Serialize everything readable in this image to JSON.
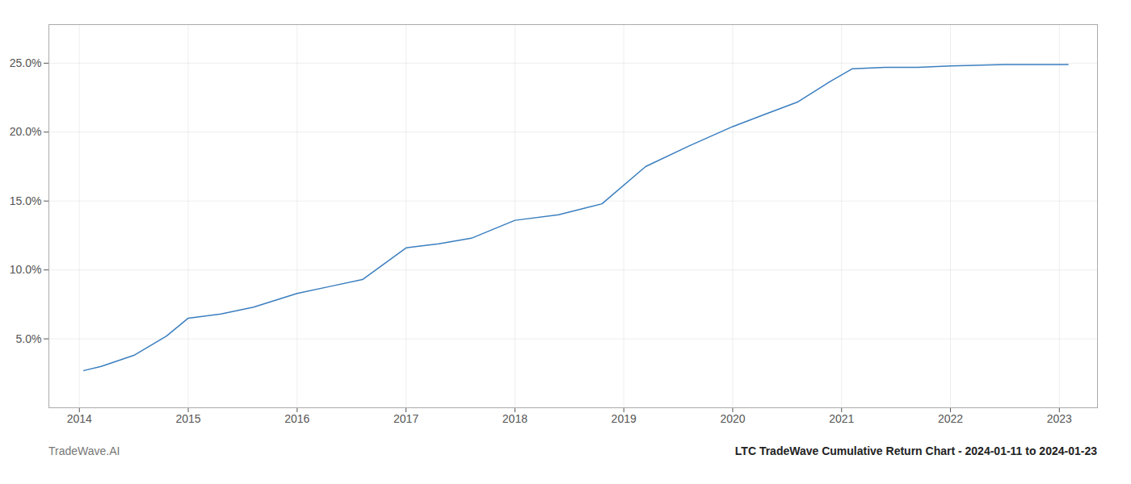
{
  "chart_data": {
    "type": "line",
    "title": "LTC TradeWave Cumulative Return Chart - 2024-01-11 to 2024-01-23",
    "caption": "TradeWave.AI",
    "x": [
      2014.04,
      2014.2,
      2014.5,
      2014.8,
      2015.0,
      2015.3,
      2015.6,
      2016.0,
      2016.3,
      2016.6,
      2017.0,
      2017.3,
      2017.6,
      2018.0,
      2018.4,
      2018.8,
      2019.2,
      2019.6,
      2020.0,
      2020.3,
      2020.6,
      2020.9,
      2021.1,
      2021.4,
      2021.7,
      2022.0,
      2022.5,
      2023.0,
      2023.08
    ],
    "values": [
      0.027,
      0.03,
      0.038,
      0.052,
      0.065,
      0.068,
      0.073,
      0.083,
      0.088,
      0.093,
      0.116,
      0.119,
      0.123,
      0.136,
      0.14,
      0.148,
      0.175,
      0.19,
      0.204,
      0.213,
      0.222,
      0.237,
      0.246,
      0.247,
      0.247,
      0.248,
      0.249,
      0.249,
      0.249
    ],
    "color": "#3a7ebf",
    "xlim": [
      2013.72,
      2023.35
    ],
    "xticks": [
      2014,
      2015,
      2016,
      2017,
      2018,
      2019,
      2020,
      2021,
      2022,
      2023
    ],
    "ylim": [
      0.0,
      0.278
    ],
    "yticks": [
      {
        "value": 0.05,
        "label": "5.0%"
      },
      {
        "value": 0.1,
        "label": "10.0%"
      },
      {
        "value": 0.15,
        "label": "15.0%"
      },
      {
        "value": 0.2,
        "label": "20.0%"
      },
      {
        "value": 0.25,
        "label": "25.0%"
      }
    ],
    "grid": true
  }
}
